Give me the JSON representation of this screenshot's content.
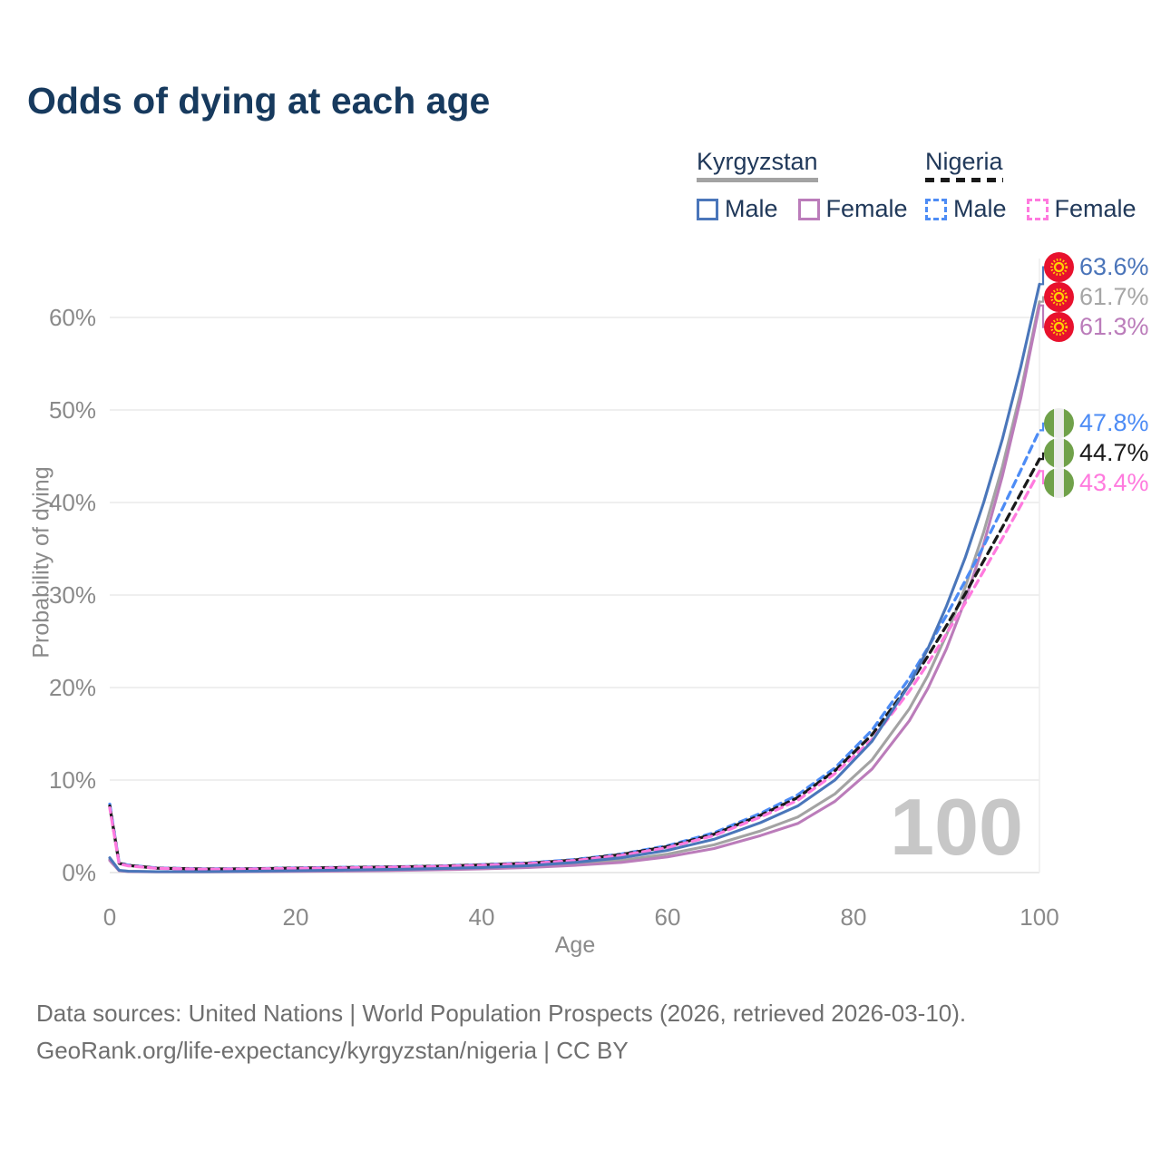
{
  "title": "Odds of dying at each age",
  "legend": {
    "groups": [
      {
        "country": "Kyrgyzstan",
        "line_style": "solid",
        "line_color": "#a3a3a3",
        "items": [
          {
            "label": "Male",
            "color": "#4a76ba",
            "style": "solid"
          },
          {
            "label": "Female",
            "color": "#bb7cba",
            "style": "solid"
          }
        ]
      },
      {
        "country": "Nigeria",
        "line_style": "dashed",
        "line_color": "#1a1a1a",
        "items": [
          {
            "label": "Male",
            "color": "#4d8cf5",
            "style": "dashed"
          },
          {
            "label": "Female",
            "color": "#ff7ade",
            "style": "dashed"
          }
        ]
      }
    ]
  },
  "chart_data": {
    "type": "line",
    "title": "Odds of dying at each age",
    "xlabel": "Age",
    "ylabel": "Probability of dying",
    "xlim": [
      0,
      100
    ],
    "ylim": [
      0,
      65
    ],
    "x_ticks": [
      0,
      20,
      40,
      60,
      80,
      100
    ],
    "y_ticks": [
      0,
      10,
      20,
      30,
      40,
      50,
      60
    ],
    "y_tick_suffix": "%",
    "grid": "horizontal",
    "watermark": "100",
    "x": [
      0,
      1,
      2,
      5,
      10,
      15,
      20,
      25,
      30,
      35,
      40,
      45,
      50,
      55,
      60,
      65,
      70,
      74,
      78,
      82,
      86,
      88,
      90,
      92,
      94,
      96,
      98,
      100
    ],
    "series": [
      {
        "name": "Kyrgyzstan Total",
        "color": "#a3a3a3",
        "dash": "solid",
        "end_label": "61.7%",
        "label_color": "#a6a6a6",
        "flag": "kyrgyzstan",
        "end_value": 61.7,
        "values": [
          1.4,
          0.22,
          0.13,
          0.09,
          0.09,
          0.12,
          0.17,
          0.21,
          0.27,
          0.35,
          0.46,
          0.63,
          0.9,
          1.3,
          2.0,
          3.0,
          4.5,
          6.0,
          8.5,
          12.2,
          17.7,
          21.3,
          25.7,
          30.8,
          36.8,
          43.8,
          52.0,
          61.7
        ]
      },
      {
        "name": "Kyrgyzstan Female",
        "color": "#bb7cba",
        "dash": "solid",
        "end_label": "61.3%",
        "label_color": "#bb7cba",
        "flag": "kyrgyzstan",
        "end_value": 61.3,
        "values": [
          1.3,
          0.2,
          0.12,
          0.08,
          0.08,
          0.1,
          0.13,
          0.17,
          0.22,
          0.29,
          0.39,
          0.54,
          0.77,
          1.1,
          1.7,
          2.6,
          4.0,
          5.3,
          7.7,
          11.2,
          16.4,
          19.9,
          24.2,
          29.4,
          35.5,
          42.8,
          51.3,
          61.3
        ]
      },
      {
        "name": "Nigeria Male",
        "color": "#4d8cf5",
        "dash": "dashed",
        "end_label": "47.8%",
        "label_color": "#4d8cf5",
        "flag": "nigeria",
        "end_value": 47.8,
        "values": [
          7.4,
          1.05,
          0.8,
          0.5,
          0.4,
          0.42,
          0.5,
          0.56,
          0.62,
          0.7,
          0.85,
          1.05,
          1.4,
          2.0,
          2.9,
          4.3,
          6.4,
          8.4,
          11.3,
          15.4,
          21.0,
          24.3,
          27.8,
          31.5,
          35.3,
          39.3,
          43.5,
          47.8
        ]
      },
      {
        "name": "Nigeria Total",
        "color": "#1a1a1a",
        "dash": "dashed",
        "end_label": "44.7%",
        "label_color": "#1a1a1a",
        "flag": "nigeria",
        "end_value": 44.7,
        "values": [
          7.2,
          1.0,
          0.77,
          0.48,
          0.38,
          0.4,
          0.48,
          0.54,
          0.6,
          0.68,
          0.82,
          1.0,
          1.35,
          1.95,
          2.8,
          4.15,
          6.2,
          8.1,
          11.0,
          14.9,
          20.3,
          23.4,
          26.7,
          30.1,
          33.7,
          37.3,
          41.0,
          44.7
        ]
      },
      {
        "name": "Nigeria Female",
        "color": "#ff7ade",
        "dash": "dashed",
        "end_label": "43.4%",
        "label_color": "#ff7ade",
        "flag": "nigeria",
        "end_value": 43.4,
        "values": [
          7.0,
          0.95,
          0.73,
          0.46,
          0.36,
          0.38,
          0.45,
          0.5,
          0.57,
          0.65,
          0.78,
          0.97,
          1.3,
          1.85,
          2.7,
          4.0,
          6.0,
          7.8,
          10.7,
          14.4,
          19.6,
          22.6,
          25.8,
          29.1,
          32.6,
          36.1,
          39.7,
          43.4
        ]
      },
      {
        "name": "Kyrgyzstan Male",
        "color": "#4a76ba",
        "dash": "solid",
        "end_label": "63.6%",
        "label_color": "#4a74b9",
        "flag": "kyrgyzstan",
        "end_value": 63.6,
        "values": [
          1.6,
          0.25,
          0.15,
          0.1,
          0.1,
          0.14,
          0.2,
          0.26,
          0.33,
          0.42,
          0.55,
          0.75,
          1.1,
          1.6,
          2.4,
          3.6,
          5.4,
          7.2,
          10.0,
          14.2,
          20.3,
          24.2,
          28.8,
          34.0,
          40.0,
          46.8,
          54.7,
          63.6
        ]
      }
    ],
    "end_label_order": [
      "63.6%",
      "61.7%",
      "61.3%",
      "47.8%",
      "44.7%",
      "43.4%"
    ]
  },
  "flags": {
    "kyrgyzstan_red": "#e8112d",
    "kyrgyzstan_yellow": "#ffd100",
    "nigeria_green": "#70a14a",
    "nigeria_white": "#ededed"
  },
  "footer": {
    "line1": "Data sources: United Nations | World Population Prospects (2026, retrieved 2026-03-10).",
    "line2": "GeoRank.org/life-expectancy/kyrgyzstan/nigeria | CC BY"
  }
}
